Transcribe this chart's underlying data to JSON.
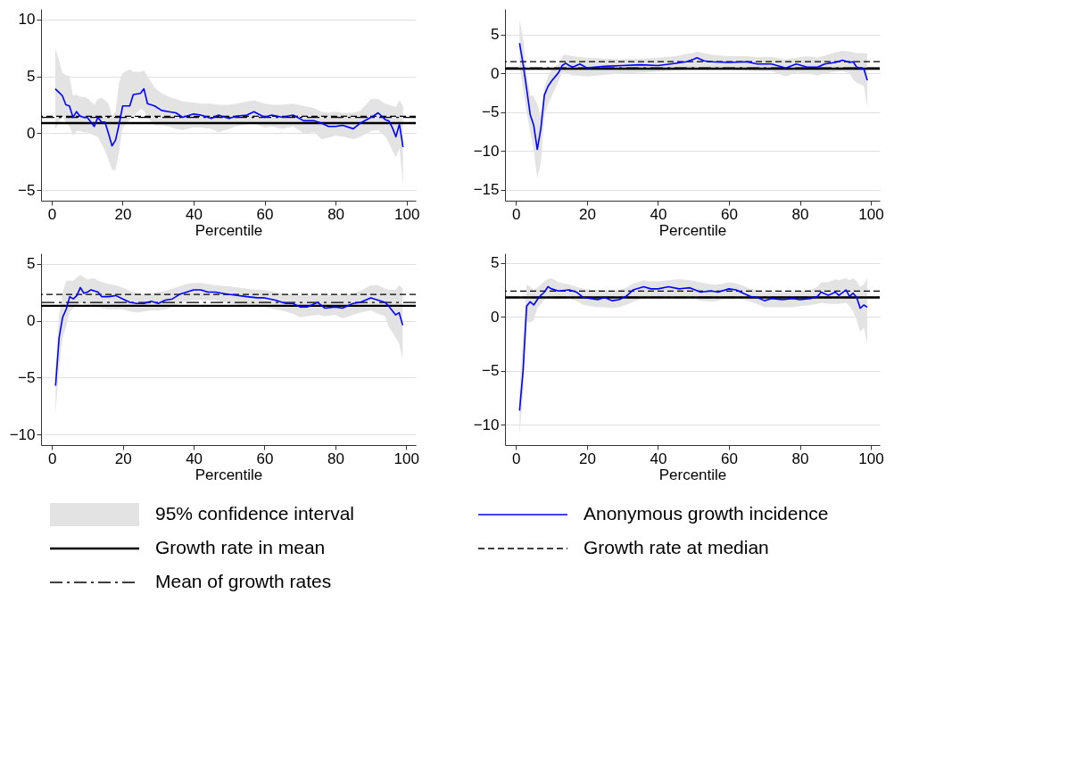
{
  "chart_data": [
    {
      "type": "line",
      "xlabel": "Percentile",
      "xlim": [
        -3,
        102.6
      ],
      "ylim": [
        -5.9,
        10.9
      ],
      "xticks": [
        0,
        20,
        40,
        60,
        80,
        100
      ],
      "yticks": [
        -5,
        0,
        5,
        10
      ],
      "grid": "y",
      "legend": "bottom",
      "annotations": [
        "95% confidence interval"
      ],
      "x": [
        1,
        2,
        3,
        4,
        5,
        6,
        7,
        8,
        9,
        10,
        12,
        13,
        14,
        15,
        16,
        17,
        18,
        19,
        20,
        22,
        23,
        25,
        26,
        27,
        29,
        31,
        33,
        35,
        37,
        40,
        42,
        45,
        47,
        50,
        52,
        55,
        57,
        60,
        62,
        65,
        68,
        71,
        74,
        76,
        78,
        80,
        82,
        85,
        87,
        90,
        92,
        94,
        95,
        96,
        97,
        98,
        99
      ],
      "series": [
        {
          "name": "Anonymous growth incidence",
          "color": "#0000ff",
          "line_style": "solid",
          "values": [
            3.9,
            3.6,
            3.3,
            2.5,
            2.4,
            1.4,
            1.9,
            1.5,
            1.4,
            1.4,
            0.6,
            1.4,
            1.0,
            1.0,
            0.0,
            -1.1,
            -0.6,
            0.8,
            2.4,
            2.4,
            3.4,
            3.5,
            3.9,
            2.6,
            2.4,
            2.0,
            1.9,
            1.8,
            1.4,
            1.7,
            1.6,
            1.3,
            1.6,
            1.3,
            1.5,
            1.6,
            1.9,
            1.4,
            1.6,
            1.4,
            1.6,
            1.1,
            1.1,
            0.9,
            0.6,
            0.6,
            0.7,
            0.4,
            0.9,
            1.4,
            1.8,
            1.2,
            1.1,
            0.5,
            -0.3,
            0.8,
            -1.2
          ],
          "upper": [
            7.4,
            6.5,
            5.3,
            5.1,
            5.0,
            3.3,
            3.4,
            3.2,
            3.2,
            3.1,
            2.5,
            3.0,
            3.1,
            2.9,
            2.6,
            1.5,
            1.9,
            4.5,
            5.3,
            5.6,
            5.4,
            5.4,
            5.5,
            5.0,
            4.0,
            3.5,
            3.2,
            3.0,
            2.8,
            2.7,
            2.6,
            2.6,
            2.5,
            2.5,
            2.6,
            2.8,
            2.9,
            2.6,
            2.5,
            2.5,
            2.6,
            2.4,
            2.2,
            1.9,
            1.8,
            1.9,
            1.8,
            1.8,
            2.0,
            3.0,
            3.0,
            2.6,
            2.5,
            2.4,
            2.3,
            2.9,
            2.4
          ],
          "lower": [
            0.3,
            1.0,
            1.5,
            1.0,
            0.6,
            -0.2,
            0.2,
            0.2,
            0.1,
            0.1,
            -0.2,
            -0.3,
            -0.9,
            -1.5,
            -2.3,
            -3.2,
            -3.2,
            -1.5,
            0.5,
            1.2,
            1.5,
            2.1,
            2.0,
            1.4,
            0.7,
            0.7,
            0.6,
            0.4,
            0.3,
            0.5,
            0.5,
            0.4,
            0.1,
            0.4,
            0.6,
            0.8,
            0.9,
            0.5,
            0.6,
            0.4,
            0.6,
            0.0,
            0.1,
            -0.5,
            -0.4,
            -0.2,
            -0.3,
            -0.5,
            -0.3,
            0.2,
            0.3,
            -0.3,
            -0.8,
            -1.5,
            -2.1,
            -1.3,
            -4.5
          ]
        }
      ],
      "ref_lines": [
        {
          "axis": "y",
          "value": 0.9,
          "label": "Growth rate in mean",
          "color": "#000000",
          "line_style": "solid"
        },
        {
          "axis": "y",
          "value": 1.5,
          "label": "Growth rate at median",
          "color": "#000000",
          "line_style": "dashed"
        },
        {
          "axis": "y",
          "value": 1.4,
          "label": "Mean of growth rates",
          "color": "#000000",
          "line_style": "dashdot"
        }
      ]
    },
    {
      "type": "line",
      "xlabel": "Percentile",
      "xlim": [
        -3.1,
        102.5
      ],
      "ylim": [
        -16.4,
        8.3
      ],
      "xticks": [
        0,
        20,
        40,
        60,
        80,
        100
      ],
      "yticks": [
        -15,
        -10,
        -5,
        0,
        5
      ],
      "grid": "y",
      "x": [
        1,
        2,
        3,
        4,
        5,
        6,
        7,
        8,
        9,
        10,
        12,
        13,
        14,
        15,
        16,
        18,
        20,
        25,
        30,
        35,
        40,
        45,
        48,
        50,
        51,
        53,
        55,
        60,
        65,
        68,
        72,
        76,
        79,
        82,
        85,
        87,
        90,
        92,
        94,
        95,
        96,
        98,
        99
      ],
      "series": [
        {
          "color": "#0000ff",
          "line_style": "solid",
          "values": [
            3.9,
            1.2,
            -2.0,
            -5.3,
            -6.7,
            -9.8,
            -7.1,
            -2.8,
            -1.7,
            -1.0,
            0.1,
            1.0,
            1.3,
            1.0,
            0.8,
            1.2,
            0.7,
            0.9,
            1.0,
            1.1,
            1.0,
            1.3,
            1.5,
            1.8,
            2.0,
            1.6,
            1.5,
            1.4,
            1.5,
            1.2,
            1.2,
            0.7,
            1.2,
            0.8,
            0.8,
            1.2,
            1.4,
            1.7,
            1.4,
            1.5,
            0.8,
            0.6,
            -0.9
          ],
          "upper": [
            7.0,
            4.5,
            0.0,
            -2.8,
            -3.0,
            -4.0,
            -5.5,
            -1.7,
            -0.5,
            0.5,
            1.2,
            2.2,
            2.4,
            2.3,
            2.2,
            2.1,
            2.0,
            1.9,
            1.8,
            1.9,
            2.0,
            2.2,
            2.5,
            2.6,
            2.8,
            2.6,
            2.4,
            2.2,
            2.2,
            2.1,
            2.1,
            1.8,
            2.0,
            2.2,
            2.0,
            2.3,
            2.7,
            2.9,
            2.8,
            2.7,
            2.6,
            2.6,
            2.5
          ],
          "lower": [
            1.0,
            -2.0,
            -5.0,
            -7.5,
            -10.0,
            -13.5,
            -11.5,
            -5.5,
            -4.0,
            -3.0,
            -1.0,
            0.1,
            0.1,
            -0.1,
            -0.3,
            -0.3,
            -0.4,
            -0.2,
            0.0,
            0.1,
            0.2,
            0.4,
            0.5,
            0.6,
            0.9,
            0.7,
            0.6,
            0.5,
            0.4,
            0.3,
            0.3,
            -0.4,
            0.1,
            0.0,
            -0.3,
            0.0,
            0.2,
            0.3,
            0.0,
            -0.8,
            -1.2,
            -1.6,
            -4.3
          ]
        }
      ],
      "ref_lines": [
        {
          "axis": "y",
          "value": 0.6,
          "color": "#000000",
          "line_style": "solid"
        },
        {
          "axis": "y",
          "value": 1.5,
          "color": "#000000",
          "line_style": "dashed"
        },
        {
          "axis": "y",
          "value": 0.7,
          "color": "#000000",
          "line_style": "dashdot"
        }
      ]
    },
    {
      "type": "line",
      "xlabel": "Percentile",
      "xlim": [
        -3.1,
        102.7
      ],
      "ylim": [
        -10.9,
        5.9
      ],
      "xticks": [
        0,
        20,
        40,
        60,
        80,
        100
      ],
      "yticks": [
        -10,
        -5,
        0,
        5
      ],
      "grid": "y",
      "x": [
        1,
        2,
        3,
        4,
        5,
        6,
        7,
        8,
        9,
        10,
        11,
        12,
        13,
        14,
        16,
        18,
        20,
        22,
        24,
        26,
        28,
        30,
        32,
        34,
        36,
        38,
        40,
        42,
        44,
        46,
        50,
        55,
        58,
        60,
        63,
        66,
        68,
        70,
        72,
        75,
        77,
        80,
        82,
        85,
        87,
        90,
        92,
        94,
        95,
        96,
        97,
        98,
        99
      ],
      "series": [
        {
          "color": "#0000ff",
          "line_style": "solid",
          "values": [
            -5.7,
            -1.5,
            0.3,
            1.0,
            2.1,
            1.9,
            2.2,
            2.9,
            2.4,
            2.5,
            2.7,
            2.6,
            2.5,
            2.1,
            2.1,
            2.2,
            1.9,
            1.6,
            1.5,
            1.5,
            1.7,
            1.5,
            1.8,
            1.9,
            2.3,
            2.5,
            2.7,
            2.7,
            2.5,
            2.5,
            2.3,
            2.1,
            2.0,
            2.0,
            1.8,
            1.5,
            1.5,
            1.2,
            1.2,
            1.6,
            1.1,
            1.2,
            1.1,
            1.5,
            1.6,
            2.0,
            1.8,
            1.6,
            1.3,
            0.9,
            0.5,
            0.7,
            -0.4
          ],
          "upper": [
            -4.0,
            0.5,
            2.5,
            3.5,
            3.5,
            3.5,
            3.8,
            4.0,
            3.8,
            3.6,
            3.7,
            3.7,
            3.5,
            3.4,
            3.2,
            3.1,
            2.9,
            2.6,
            2.4,
            2.3,
            2.4,
            2.5,
            2.6,
            2.8,
            3.0,
            3.2,
            3.3,
            3.3,
            3.2,
            3.1,
            3.0,
            2.8,
            2.7,
            2.7,
            2.5,
            2.3,
            2.3,
            2.2,
            2.2,
            2.3,
            2.2,
            2.3,
            2.2,
            2.4,
            2.6,
            3.1,
            3.1,
            2.8,
            2.7,
            2.7,
            2.7,
            3.1,
            2.8
          ],
          "lower": [
            -8.1,
            -4.0,
            -1.5,
            -0.5,
            0.8,
            1.1,
            1.3,
            1.5,
            1.5,
            1.4,
            1.4,
            1.3,
            1.2,
            1.1,
            1.0,
            1.0,
            1.0,
            0.8,
            0.7,
            0.8,
            0.9,
            0.9,
            1.0,
            1.2,
            1.5,
            1.7,
            1.8,
            1.8,
            1.8,
            1.8,
            1.5,
            1.3,
            1.2,
            1.2,
            1.0,
            0.8,
            0.6,
            0.3,
            0.4,
            0.5,
            0.4,
            0.5,
            0.2,
            0.5,
            0.7,
            0.9,
            0.6,
            0.4,
            -0.5,
            -1.0,
            -1.5,
            -2.0,
            -3.4
          ]
        }
      ],
      "ref_lines": [
        {
          "axis": "y",
          "value": 1.3,
          "color": "#000000",
          "line_style": "solid"
        },
        {
          "axis": "y",
          "value": 2.3,
          "color": "#000000",
          "line_style": "dashed"
        },
        {
          "axis": "y",
          "value": 1.6,
          "color": "#000000",
          "line_style": "dashdot"
        }
      ]
    },
    {
      "type": "line",
      "xlabel": "Percentile",
      "xlim": [
        -3.1,
        102.5
      ],
      "ylim": [
        -11.9,
        5.9
      ],
      "xticks": [
        0,
        20,
        40,
        60,
        80,
        100
      ],
      "yticks": [
        -10,
        -5,
        0,
        5
      ],
      "grid": "y",
      "x": [
        1,
        2,
        3,
        4,
        5,
        6,
        7,
        8,
        9,
        10,
        12,
        15,
        17,
        19,
        21,
        23,
        25,
        27,
        29,
        31,
        33,
        36,
        38,
        40,
        43,
        46,
        49,
        52,
        55,
        57,
        60,
        62,
        64,
        66,
        68,
        70,
        72,
        75,
        78,
        80,
        83,
        85,
        86,
        88,
        90,
        91,
        93,
        94,
        95,
        96,
        97,
        98,
        99
      ],
      "series": [
        {
          "color": "#0000ff",
          "line_style": "solid",
          "values": [
            -8.7,
            -5.0,
            1.0,
            1.4,
            1.1,
            1.6,
            2.0,
            2.3,
            2.8,
            2.6,
            2.4,
            2.5,
            2.3,
            1.8,
            1.7,
            1.6,
            1.8,
            1.5,
            1.6,
            1.9,
            2.5,
            2.8,
            2.6,
            2.6,
            2.8,
            2.6,
            2.7,
            2.3,
            2.4,
            2.3,
            2.6,
            2.5,
            2.2,
            1.9,
            1.8,
            1.5,
            1.7,
            1.6,
            1.7,
            1.6,
            1.7,
            1.9,
            2.3,
            2.0,
            2.3,
            2.0,
            2.5,
            1.9,
            2.2,
            1.8,
            0.8,
            1.1,
            0.9
          ],
          "upper": [
            -7.0,
            -2.0,
            3.0,
            2.8,
            2.5,
            2.7,
            3.0,
            3.3,
            3.5,
            3.6,
            3.2,
            3.0,
            2.8,
            2.6,
            2.5,
            2.5,
            2.5,
            2.4,
            2.5,
            2.7,
            3.1,
            3.4,
            3.3,
            3.3,
            3.4,
            3.5,
            3.4,
            3.2,
            3.0,
            3.0,
            3.2,
            3.1,
            2.9,
            2.6,
            2.5,
            2.3,
            2.3,
            2.3,
            2.3,
            2.4,
            2.5,
            2.8,
            3.2,
            3.2,
            3.5,
            3.4,
            3.6,
            3.4,
            3.6,
            3.3,
            2.8,
            3.0,
            3.6
          ],
          "lower": [
            -11.0,
            -7.0,
            -0.5,
            -0.5,
            -0.3,
            0.8,
            1.2,
            1.6,
            1.8,
            1.7,
            1.7,
            1.7,
            1.5,
            1.1,
            1.0,
            0.9,
            0.9,
            0.8,
            0.9,
            1.1,
            1.4,
            1.7,
            1.8,
            1.8,
            1.9,
            1.9,
            1.8,
            1.5,
            1.4,
            1.5,
            1.8,
            1.8,
            1.6,
            1.4,
            1.2,
            0.9,
            0.9,
            0.9,
            0.9,
            1.0,
            1.1,
            1.2,
            1.3,
            1.2,
            1.2,
            1.2,
            1.3,
            1.0,
            0.5,
            -0.3,
            -1.4,
            -1.0,
            -2.5
          ]
        }
      ],
      "ref_lines": [
        {
          "axis": "y",
          "value": 1.8,
          "color": "#000000",
          "line_style": "solid"
        },
        {
          "axis": "y",
          "value": 2.4,
          "color": "#000000",
          "line_style": "dashed"
        },
        {
          "axis": "y",
          "value": 1.8,
          "color": "#000000",
          "line_style": "dashdot"
        }
      ]
    }
  ]
}
